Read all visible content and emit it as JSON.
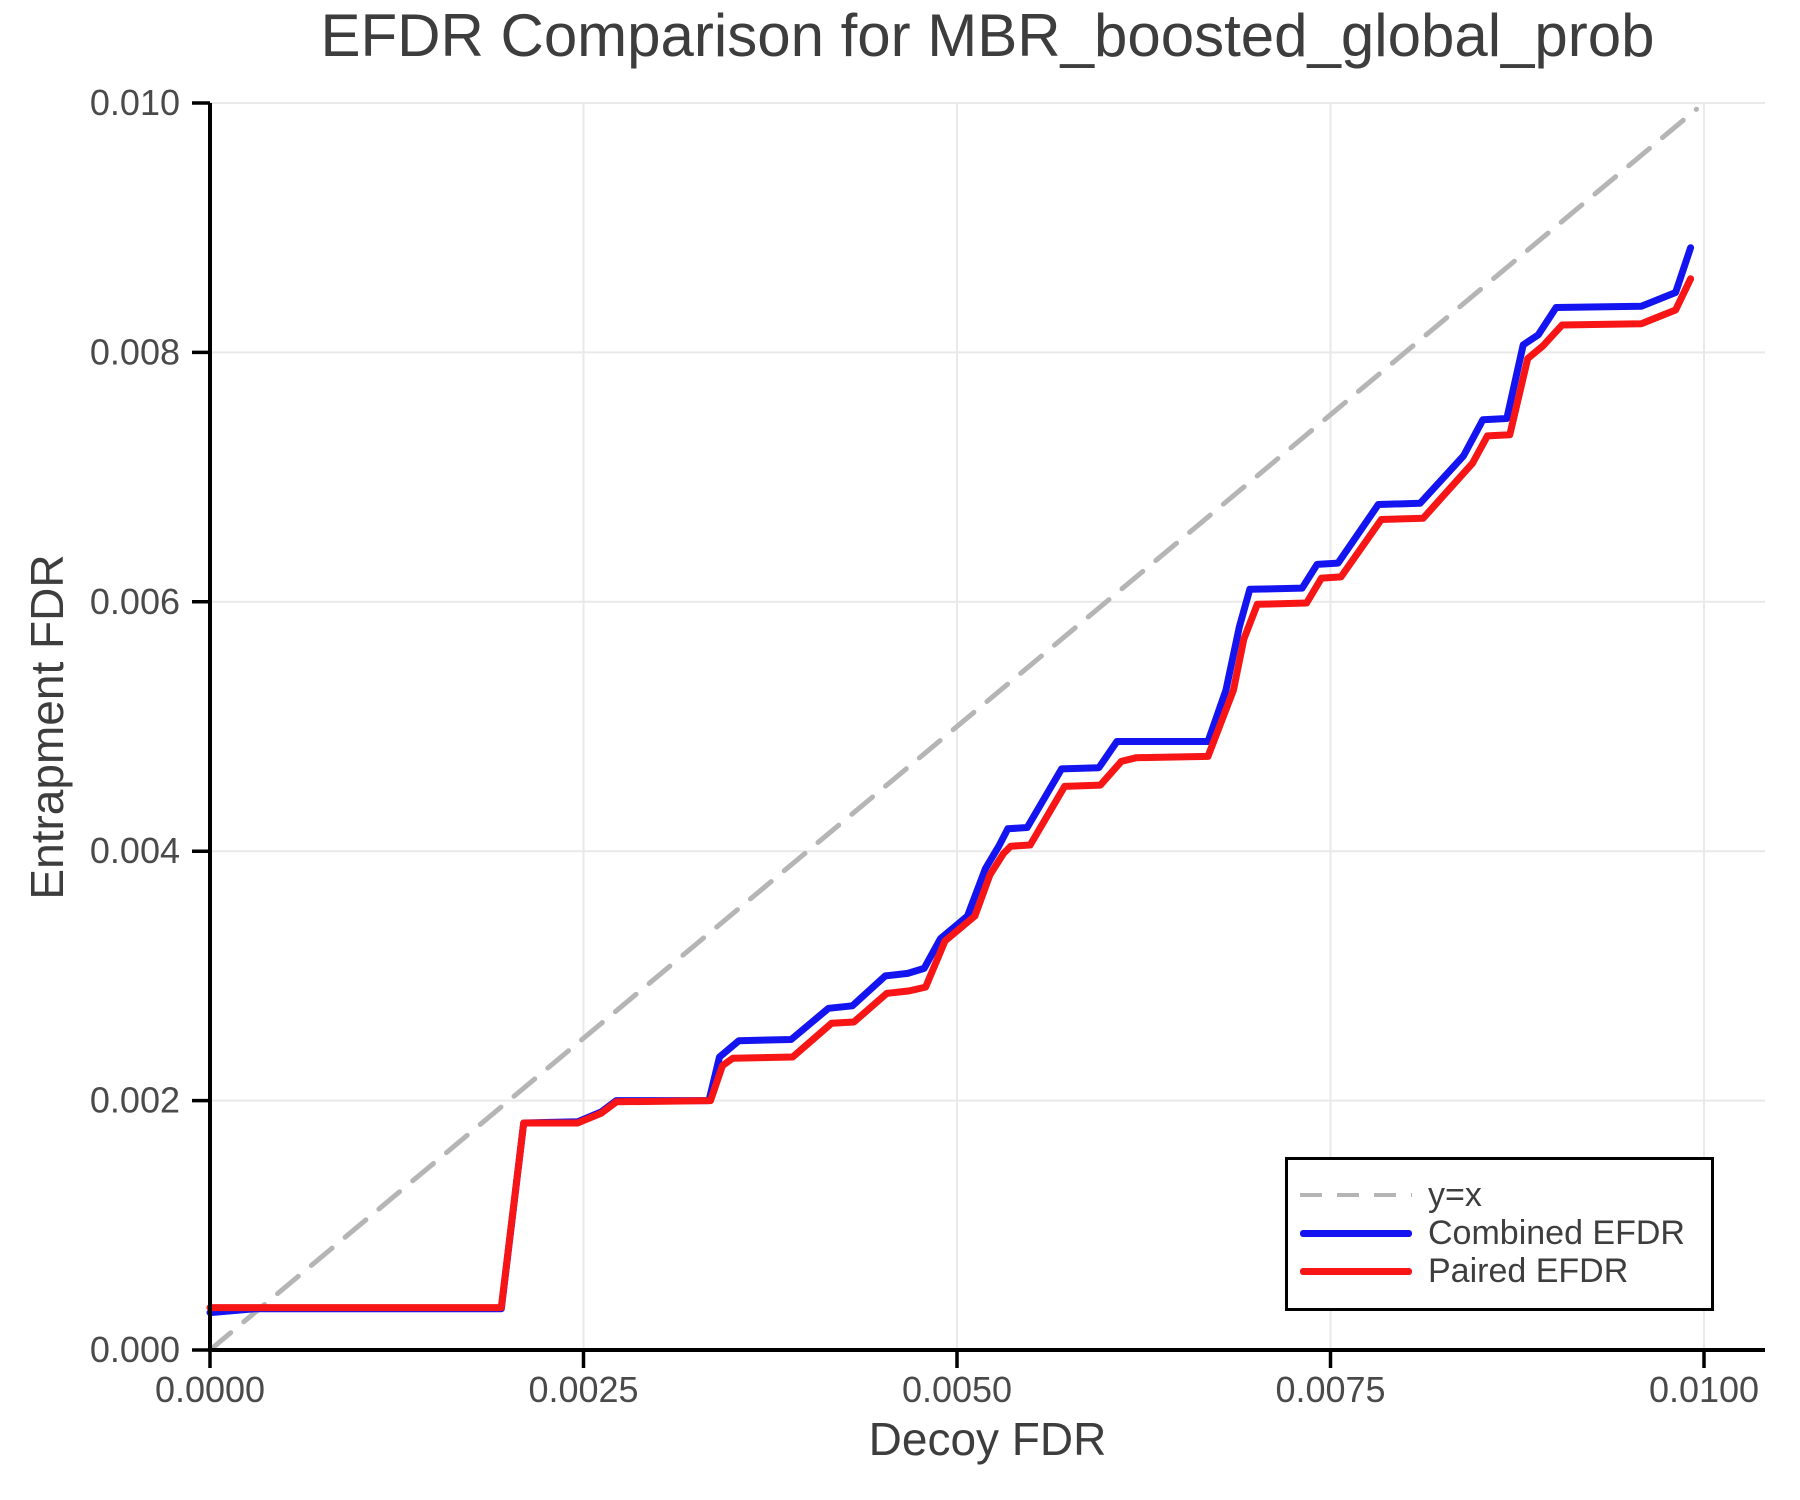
{
  "title": "EFDR Comparison for MBR_boosted_global_prob",
  "axes": {
    "xlabel": "Decoy FDR",
    "ylabel": "Entrapment FDR"
  },
  "colors": {
    "identity_line": "#b5b5b5",
    "combined_efdr": "#1414f0",
    "paired_efdr": "#f81515",
    "gridline": "#e9e9e9",
    "spine": "#000000",
    "tick_label": "#4a4a4a",
    "text": "#3d3d3d"
  },
  "legend": {
    "position": "lower right",
    "items": [
      {
        "label": "y=x",
        "color": "#b5b5b5",
        "style": "dashed"
      },
      {
        "label": "Combined EFDR",
        "color": "#1414f0",
        "style": "solid"
      },
      {
        "label": "Paired EFDR",
        "color": "#f81515",
        "style": "solid"
      }
    ]
  },
  "chart_data": {
    "type": "line",
    "title": "EFDR Comparison for MBR_boosted_global_prob",
    "xlabel": "Decoy FDR",
    "ylabel": "Entrapment FDR",
    "xlim": [
      0,
      0.0104
    ],
    "ylim": [
      0,
      0.01
    ],
    "grid": true,
    "legend_position": "lower right",
    "xticks": [
      0,
      0.0025,
      0.005,
      0.0075,
      0.01
    ],
    "xtick_labels": [
      "0.0000",
      "0.0025",
      "0.0050",
      "0.0075",
      "0.0100"
    ],
    "yticks": [
      0,
      0.002,
      0.004,
      0.006,
      0.008,
      0.01
    ],
    "ytick_labels": [
      "0.000",
      "0.002",
      "0.004",
      "0.006",
      "0.008",
      "0.010"
    ],
    "series": [
      {
        "name": "y=x",
        "color": "#b5b5b5",
        "dash": true,
        "width": 5,
        "points": [
          [
            0,
            0
          ],
          [
            0.00995,
            0.00995
          ]
        ]
      },
      {
        "name": "Combined EFDR",
        "color": "#1414f0",
        "dash": false,
        "width": 7,
        "points": [
          [
            0.0,
            0.0003
          ],
          [
            0.0003,
            0.00033
          ],
          [
            0.00195,
            0.00033
          ],
          [
            0.0021,
            0.00182
          ],
          [
            0.00246,
            0.00183
          ],
          [
            0.00262,
            0.00191
          ],
          [
            0.00272,
            0.002
          ],
          [
            0.00334,
            0.002
          ],
          [
            0.00341,
            0.00235
          ],
          [
            0.00354,
            0.00248
          ],
          [
            0.00389,
            0.00249
          ],
          [
            0.00414,
            0.00274
          ],
          [
            0.0043,
            0.00276
          ],
          [
            0.00452,
            0.003
          ],
          [
            0.00467,
            0.00302
          ],
          [
            0.00478,
            0.00306
          ],
          [
            0.00489,
            0.0033
          ],
          [
            0.00507,
            0.00348
          ],
          [
            0.00519,
            0.00386
          ],
          [
            0.00528,
            0.00404
          ],
          [
            0.00534,
            0.00418
          ],
          [
            0.00547,
            0.00419
          ],
          [
            0.0057,
            0.00466
          ],
          [
            0.00595,
            0.00467
          ],
          [
            0.00607,
            0.00488
          ],
          [
            0.00668,
            0.00488
          ],
          [
            0.0068,
            0.00529
          ],
          [
            0.00689,
            0.0058
          ],
          [
            0.00696,
            0.0061
          ],
          [
            0.00731,
            0.00611
          ],
          [
            0.00741,
            0.0063
          ],
          [
            0.00755,
            0.00631
          ],
          [
            0.00782,
            0.00678
          ],
          [
            0.0081,
            0.00679
          ],
          [
            0.00839,
            0.00717
          ],
          [
            0.00852,
            0.00746
          ],
          [
            0.00868,
            0.00747
          ],
          [
            0.00879,
            0.00806
          ],
          [
            0.00889,
            0.00814
          ],
          [
            0.00901,
            0.00836
          ],
          [
            0.00958,
            0.00837
          ],
          [
            0.00981,
            0.00848
          ],
          [
            0.00991,
            0.00884
          ]
        ]
      },
      {
        "name": "Paired EFDR",
        "color": "#f81515",
        "dash": false,
        "width": 7,
        "points": [
          [
            0.0,
            0.00034
          ],
          [
            0.00195,
            0.00034
          ],
          [
            0.0021,
            0.00182
          ],
          [
            0.00246,
            0.00182
          ],
          [
            0.00262,
            0.0019
          ],
          [
            0.00272,
            0.00199
          ],
          [
            0.00335,
            0.002
          ],
          [
            0.00343,
            0.00228
          ],
          [
            0.0035,
            0.00234
          ],
          [
            0.0039,
            0.00235
          ],
          [
            0.00416,
            0.00262
          ],
          [
            0.00431,
            0.00263
          ],
          [
            0.00453,
            0.00286
          ],
          [
            0.00468,
            0.00288
          ],
          [
            0.00479,
            0.00291
          ],
          [
            0.00492,
            0.00328
          ],
          [
            0.00512,
            0.00348
          ],
          [
            0.00522,
            0.00381
          ],
          [
            0.00531,
            0.00398
          ],
          [
            0.00536,
            0.00404
          ],
          [
            0.00549,
            0.00405
          ],
          [
            0.00572,
            0.00452
          ],
          [
            0.00596,
            0.00453
          ],
          [
            0.0061,
            0.00472
          ],
          [
            0.0062,
            0.00475
          ],
          [
            0.00668,
            0.00476
          ],
          [
            0.00685,
            0.00529
          ],
          [
            0.00692,
            0.0057
          ],
          [
            0.00701,
            0.00598
          ],
          [
            0.00734,
            0.00599
          ],
          [
            0.00744,
            0.00619
          ],
          [
            0.00757,
            0.0062
          ],
          [
            0.00784,
            0.00666
          ],
          [
            0.00812,
            0.00667
          ],
          [
            0.00845,
            0.00711
          ],
          [
            0.00855,
            0.00733
          ],
          [
            0.0087,
            0.00734
          ],
          [
            0.00882,
            0.00795
          ],
          [
            0.00892,
            0.00805
          ],
          [
            0.00905,
            0.00822
          ],
          [
            0.00958,
            0.00823
          ],
          [
            0.00981,
            0.00834
          ],
          [
            0.00991,
            0.00859
          ]
        ]
      }
    ]
  }
}
